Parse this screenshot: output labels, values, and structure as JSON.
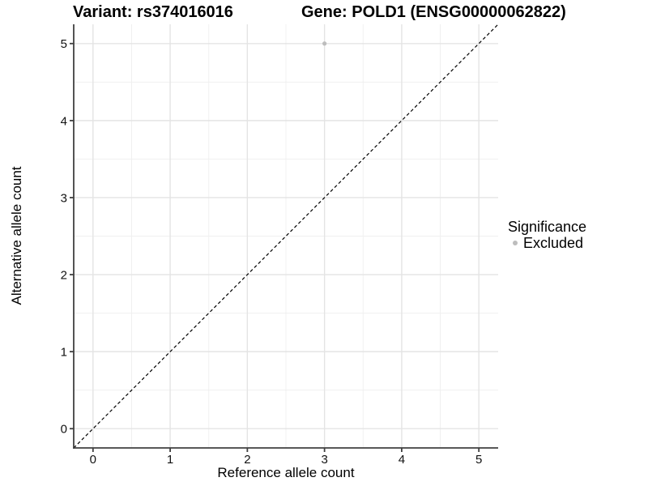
{
  "figure": {
    "background": "#FFFFFF"
  },
  "chart_data": {
    "type": "scatter",
    "titles": {
      "left": "Variant: rs374016016",
      "right": "Gene: POLD1 (ENSG00000062822)"
    },
    "xlabel": "Reference allele count",
    "ylabel": "Alternative allele count",
    "xlim": [
      -0.25,
      5.25
    ],
    "ylim": [
      -0.25,
      5.25
    ],
    "x_ticks": [
      0,
      1,
      2,
      3,
      4,
      5
    ],
    "y_ticks": [
      0,
      1,
      2,
      3,
      4,
      5
    ],
    "minor_ticks": [
      0.5,
      1.5,
      2.5,
      3.5,
      4.5
    ],
    "grid": {
      "major_color": "#E4E4E4",
      "minor_color": "#F0F0F0"
    },
    "axis": {
      "line_color": "#404040",
      "tick_color": "#404040",
      "tick_label_color": "#111111"
    },
    "identity_line": {
      "slope": 1,
      "intercept": 0,
      "style": "dashed",
      "color": "#000000"
    },
    "series": [
      {
        "name": "Excluded",
        "color": "#BDBDBD",
        "point_radius": 2.6,
        "points": [
          {
            "x": 3,
            "y": 5
          }
        ]
      }
    ],
    "legend": {
      "title": "Significance",
      "position": "right",
      "items": [
        {
          "label": "Excluded",
          "color": "#BDBDBD"
        }
      ]
    }
  }
}
